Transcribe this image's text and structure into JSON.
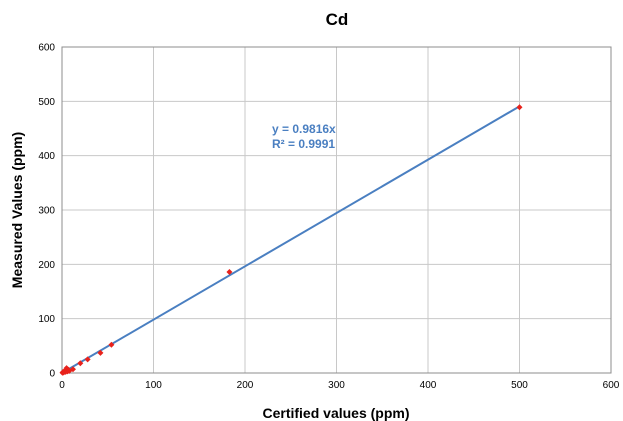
{
  "chart_data": {
    "type": "scatter",
    "title": "Cd",
    "xlabel": "Certified values (ppm)",
    "ylabel": "Measured Values (ppm)",
    "xlim": [
      0,
      600
    ],
    "ylim": [
      0,
      600
    ],
    "xticks": [
      0,
      100,
      200,
      300,
      400,
      500,
      600
    ],
    "yticks": [
      0,
      100,
      200,
      300,
      400,
      500,
      600
    ],
    "grid": true,
    "legend": "none",
    "series": [
      {
        "color": "#e8221b",
        "marker": "diamond",
        "points": [
          {
            "x": 0.5,
            "y": 0.5
          },
          {
            "x": 1,
            "y": 1.5
          },
          {
            "x": 1.5,
            "y": 1
          },
          {
            "x": 2,
            "y": 2.5
          },
          {
            "x": 2.5,
            "y": 2
          },
          {
            "x": 3,
            "y": 3
          },
          {
            "x": 3.5,
            "y": 4
          },
          {
            "x": 4,
            "y": 2
          },
          {
            "x": 5,
            "y": 5
          },
          {
            "x": 5,
            "y": 9
          },
          {
            "x": 6,
            "y": 3
          },
          {
            "x": 7,
            "y": 6
          },
          {
            "x": 8,
            "y": 4
          },
          {
            "x": 12,
            "y": 7
          },
          {
            "x": 20,
            "y": 18
          },
          {
            "x": 28,
            "y": 25
          },
          {
            "x": 42,
            "y": 37
          },
          {
            "x": 54,
            "y": 52
          },
          {
            "x": 183,
            "y": 186
          },
          {
            "x": 500,
            "y": 489
          }
        ]
      }
    ],
    "trendline": {
      "color": "#4a7fc1",
      "slope": 0.9816,
      "x_range": [
        0,
        500
      ]
    },
    "annotation": {
      "color": "#4a7fc1",
      "equation": "y = 0.9816x",
      "r_squared": "R² = 0.9991"
    }
  }
}
